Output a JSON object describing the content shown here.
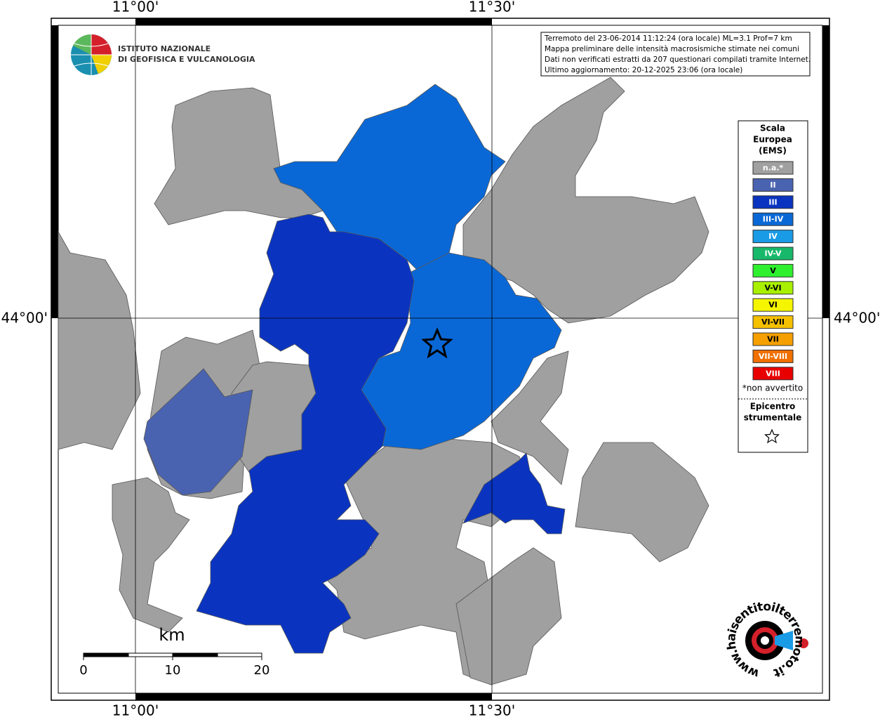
{
  "frame": {
    "top_labels": [
      "11°00'",
      "11°30'"
    ],
    "bottom_labels": [
      "11°00'",
      "11°30'"
    ],
    "left_label": "44°00'",
    "right_label": "44°00'"
  },
  "logo": {
    "line1": "ISTITUTO NAZIONALE",
    "line2": "DI GEOFISICA E VULCANOLOGIA"
  },
  "info": {
    "lines": [
      "Terremoto del 23-06-2014 11:12:24 (ora locale) ML=3.1 Prof=7 km",
      "Mappa preliminare delle intensità macrosismiche stimate nei comuni",
      "Dati non verificati estratti da 207 questionari compilati tramite Internet.",
      "Ultimo aggiornamento: 20-12-2025 23:06 (ora locale)"
    ]
  },
  "legend": {
    "title": [
      "Scala",
      "Europea",
      "(EMS)"
    ],
    "items": [
      {
        "label": "n.a.*",
        "color": "#a0a0a0"
      },
      {
        "label": "II",
        "color": "#4a63b0"
      },
      {
        "label": "III",
        "color": "#0a34c0"
      },
      {
        "label": "III-IV",
        "color": "#0a68d6"
      },
      {
        "label": "IV",
        "color": "#1a9be6"
      },
      {
        "label": "IV-V",
        "color": "#17b86a"
      },
      {
        "label": "V",
        "color": "#2ef02e"
      },
      {
        "label": "V-VI",
        "color": "#a8f000"
      },
      {
        "label": "VI",
        "color": "#f5f500"
      },
      {
        "label": "VI-VII",
        "color": "#f5c000"
      },
      {
        "label": "VII",
        "color": "#f5a000"
      },
      {
        "label": "VII-VIII",
        "color": "#f07000"
      },
      {
        "label": "VIII",
        "color": "#e80000"
      }
    ],
    "note": "*non avvertito",
    "epicenter": [
      "Epicentro",
      "strumentale"
    ]
  },
  "scalebar": {
    "unit": "km",
    "labels": [
      "0",
      "10",
      "20"
    ]
  },
  "site_logo": {
    "text": "www.haisentitoilterremoto.it"
  }
}
